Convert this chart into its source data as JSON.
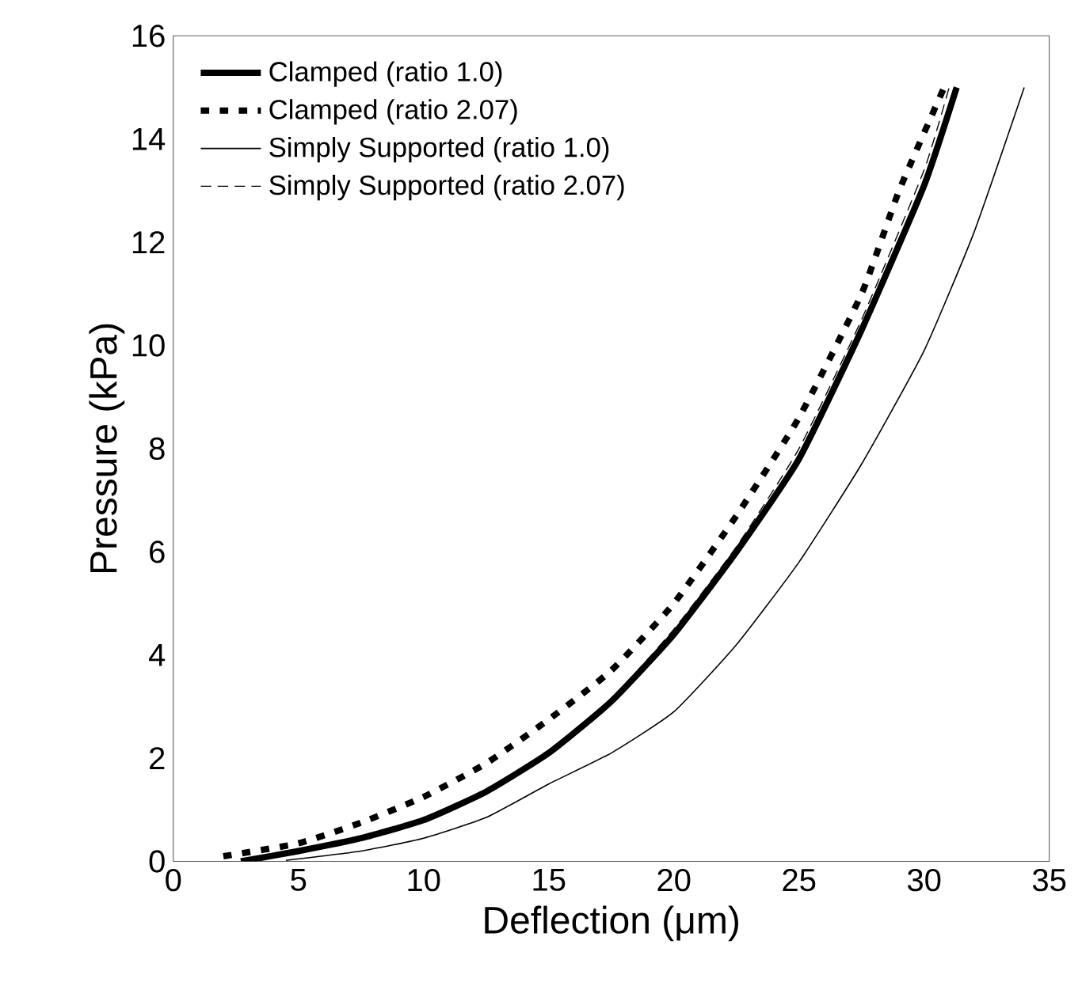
{
  "chart_data": {
    "type": "line",
    "xlabel": "Deflection (μm)",
    "ylabel": "Pressure (kPa)",
    "xlim": [
      0,
      35
    ],
    "ylim": [
      0,
      16
    ],
    "xticks": [
      0,
      5,
      10,
      15,
      20,
      25,
      30,
      35
    ],
    "yticks": [
      0,
      2,
      4,
      6,
      8,
      10,
      12,
      14,
      16
    ],
    "legend": "top left",
    "grid": false,
    "marker": "none",
    "series": [
      {
        "name": "Clamped (ratio 1.0)",
        "color": "#000000",
        "line_style": "solid",
        "x": [
          2.7,
          5,
          7.5,
          10,
          12.5,
          15,
          17.5,
          20,
          22.5,
          25,
          27.5,
          30,
          31.3
        ],
        "values": [
          0,
          0.2,
          0.45,
          0.8,
          1.35,
          2.1,
          3.1,
          4.4,
          6.0,
          7.8,
          10.3,
          13.1,
          15
        ]
      },
      {
        "name": "Clamped (ratio 2.07)",
        "color": "#000000",
        "line_style": "dotted",
        "x": [
          2,
          5,
          7.5,
          10,
          12.5,
          15,
          17.5,
          20,
          22.5,
          25,
          27.5,
          29,
          30.8
        ],
        "values": [
          0.1,
          0.35,
          0.75,
          1.25,
          1.9,
          2.75,
          3.7,
          5.0,
          6.7,
          8.6,
          11.0,
          13.0,
          15
        ]
      },
      {
        "name": "Simply Supported (ratio 1.0)",
        "color": "#000000",
        "line_style": "solid",
        "x": [
          4.5,
          7.5,
          10,
          12.5,
          15,
          17.5,
          20,
          22.5,
          25,
          27.5,
          30,
          32,
          34
        ],
        "values": [
          0.02,
          0.2,
          0.45,
          0.85,
          1.5,
          2.1,
          2.9,
          4.2,
          5.8,
          7.7,
          9.9,
          12.2,
          15
        ]
      },
      {
        "name": "Simply Supported (ratio 2.07)",
        "color": "#000000",
        "line_style": "dashed",
        "x": [
          3,
          5,
          7.5,
          10,
          12.5,
          15,
          17.5,
          20,
          22.5,
          25,
          27.5,
          30,
          31
        ],
        "values": [
          0.05,
          0.2,
          0.45,
          0.8,
          1.35,
          2.15,
          3.15,
          4.5,
          6.1,
          8.0,
          10.5,
          13.4,
          15
        ]
      }
    ]
  }
}
